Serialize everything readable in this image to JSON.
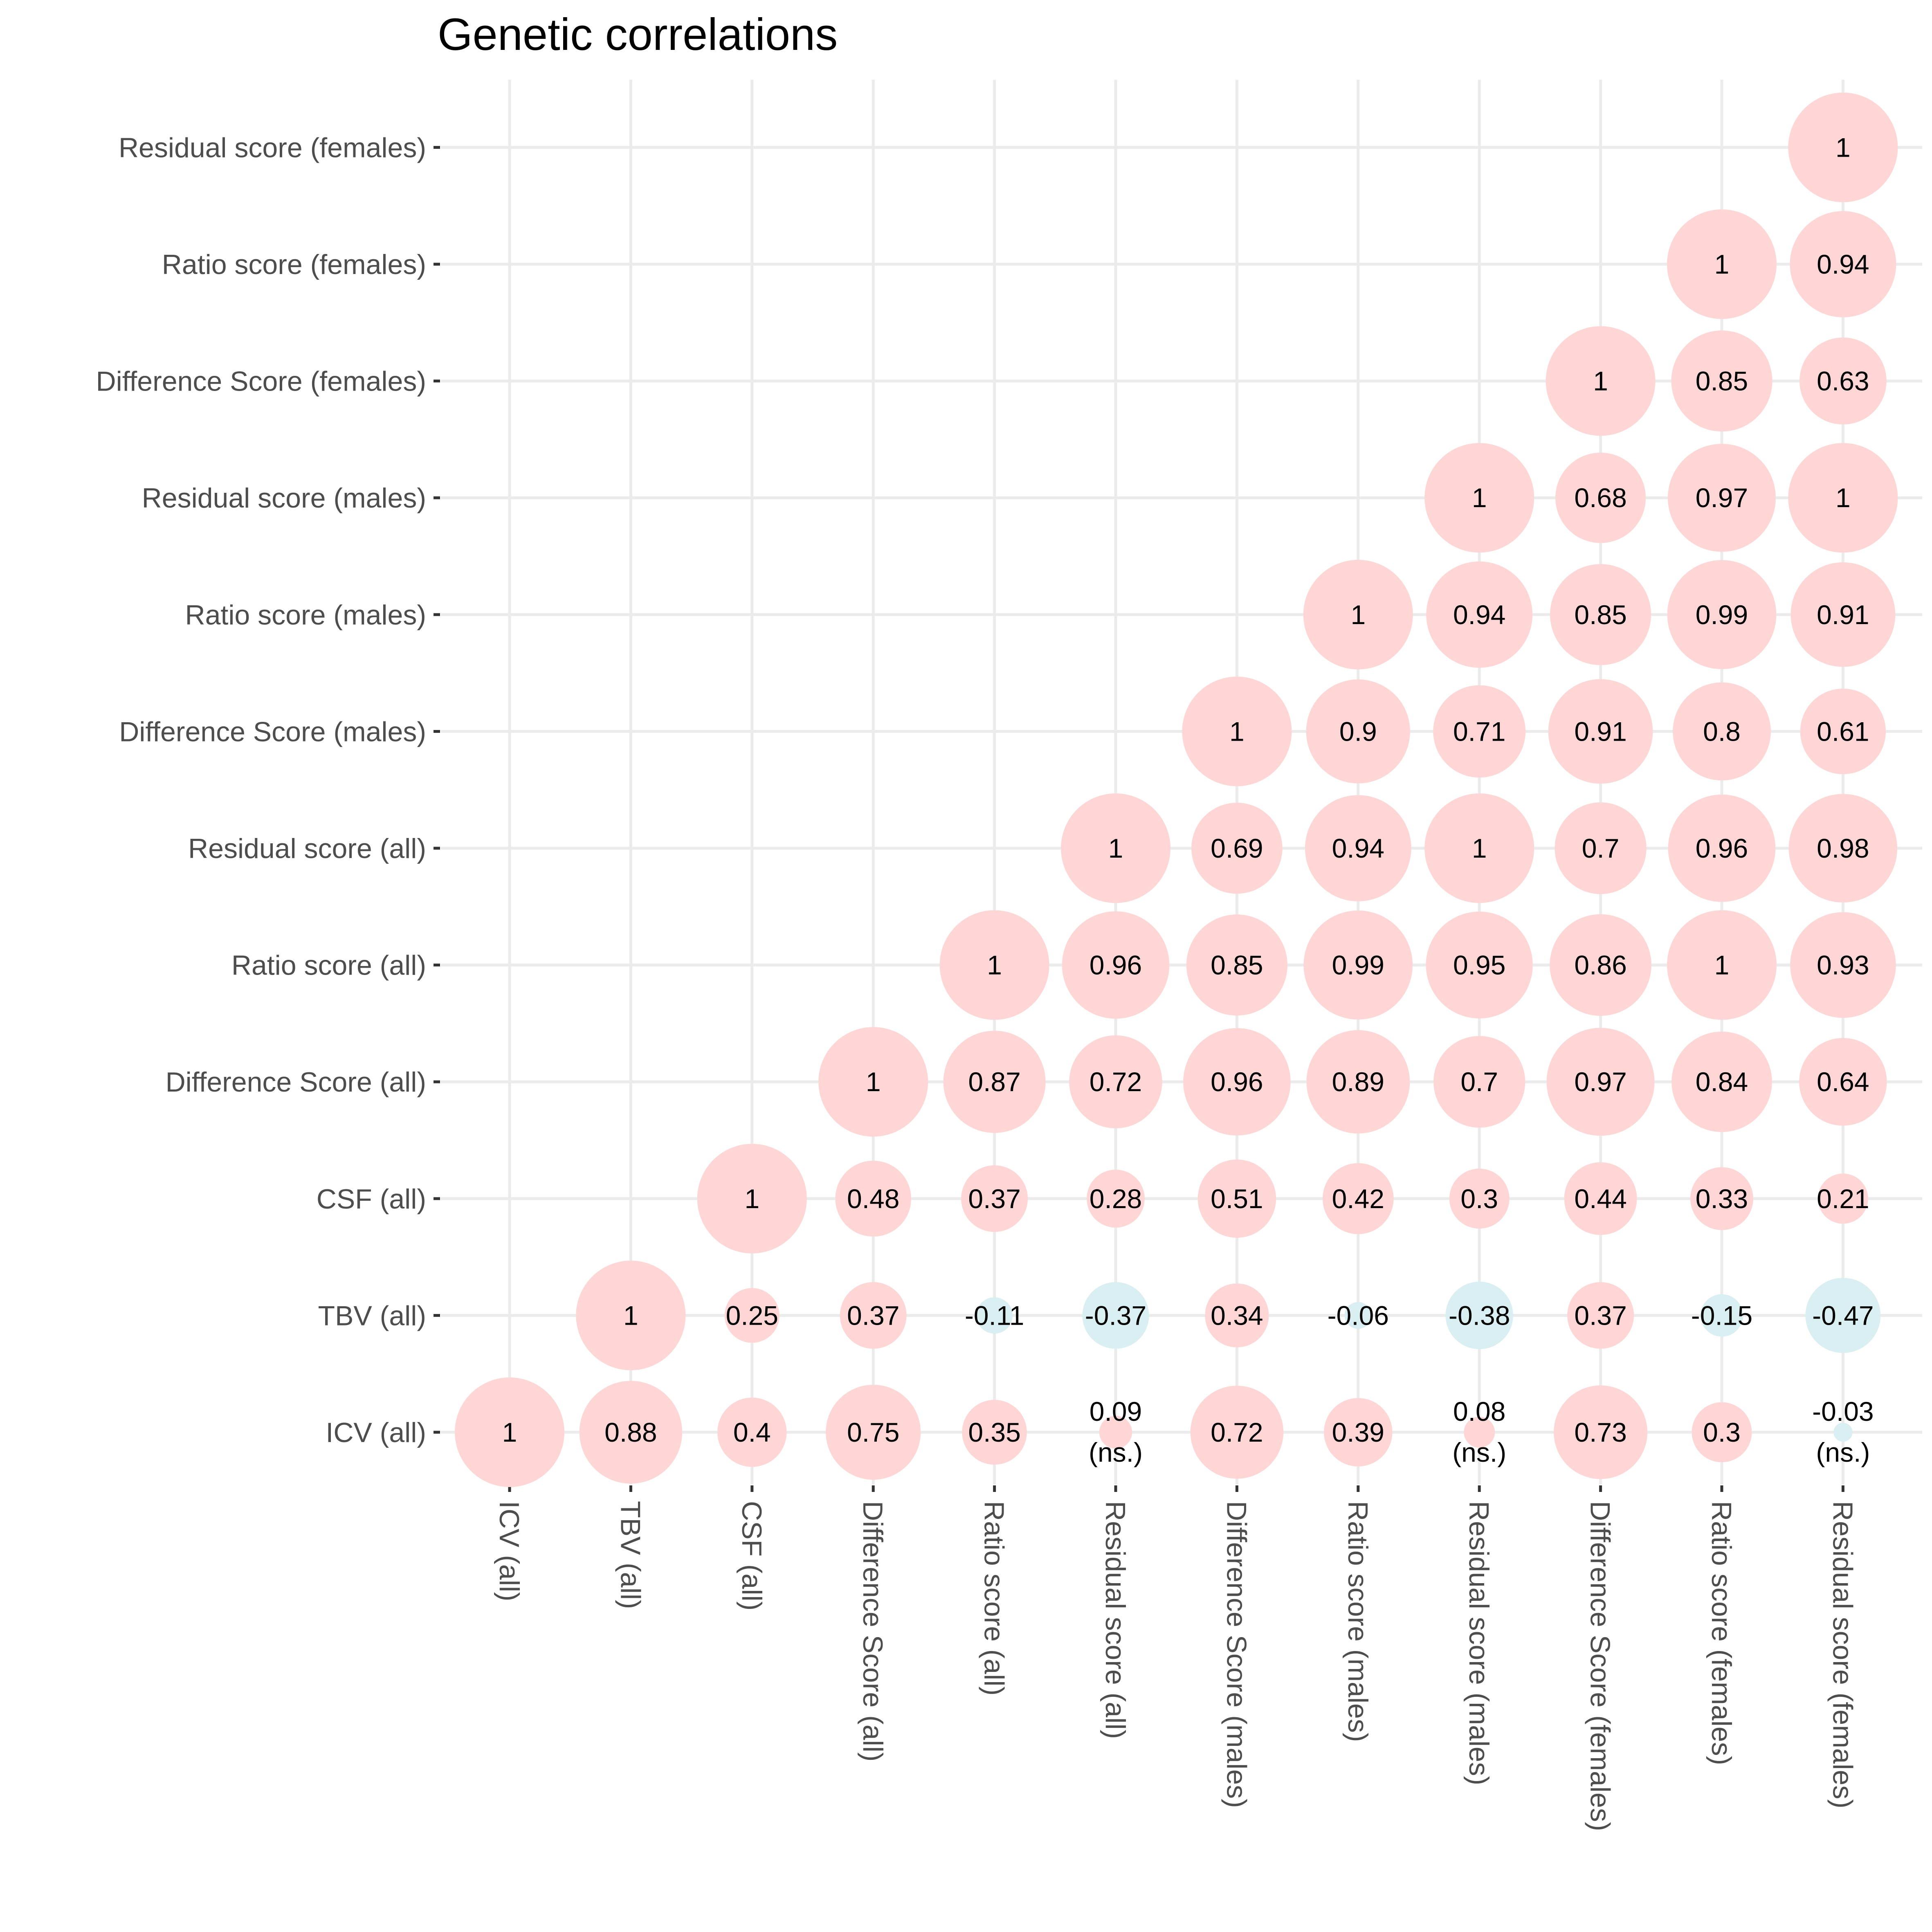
{
  "chart_data": {
    "type": "correlation-bubble",
    "title": "Genetic correlations",
    "xlabel": "",
    "ylabel": "",
    "grid": true,
    "legend": "none",
    "colors": {
      "positive": "#f8766d",
      "negative": "#00bfc4",
      "positive_fill": "#ffd6d6",
      "negative_fill": "#d9eff2"
    },
    "variables": [
      "ICV (all)",
      "TBV (all)",
      "CSF (all)",
      "Difference Score (all)",
      "Ratio score (all)",
      "Residual score (all)",
      "Difference Score (males)",
      "Ratio score (males)",
      "Residual score (males)",
      "Difference Score (females)",
      "Ratio score (females)",
      "Residual score (females)"
    ],
    "cells": [
      {
        "x": "ICV (all)",
        "y": "ICV (all)",
        "r": 1,
        "label": "1"
      },
      {
        "x": "TBV (all)",
        "y": "ICV (all)",
        "r": 0.88,
        "label": "0.88"
      },
      {
        "x": "TBV (all)",
        "y": "TBV (all)",
        "r": 1,
        "label": "1"
      },
      {
        "x": "CSF (all)",
        "y": "ICV (all)",
        "r": 0.4,
        "label": "0.4"
      },
      {
        "x": "CSF (all)",
        "y": "TBV (all)",
        "r": 0.25,
        "label": "0.25"
      },
      {
        "x": "CSF (all)",
        "y": "CSF (all)",
        "r": 1,
        "label": "1"
      },
      {
        "x": "Difference Score (all)",
        "y": "ICV (all)",
        "r": 0.75,
        "label": "0.75"
      },
      {
        "x": "Difference Score (all)",
        "y": "TBV (all)",
        "r": 0.37,
        "label": "0.37"
      },
      {
        "x": "Difference Score (all)",
        "y": "CSF (all)",
        "r": 0.48,
        "label": "0.48"
      },
      {
        "x": "Difference Score (all)",
        "y": "Difference Score (all)",
        "r": 1,
        "label": "1"
      },
      {
        "x": "Ratio score (all)",
        "y": "ICV (all)",
        "r": 0.35,
        "label": "0.35"
      },
      {
        "x": "Ratio score (all)",
        "y": "TBV (all)",
        "r": -0.11,
        "label": "-0.11"
      },
      {
        "x": "Ratio score (all)",
        "y": "CSF (all)",
        "r": 0.37,
        "label": "0.37"
      },
      {
        "x": "Ratio score (all)",
        "y": "Difference Score (all)",
        "r": 0.87,
        "label": "0.87"
      },
      {
        "x": "Ratio score (all)",
        "y": "Ratio score (all)",
        "r": 1,
        "label": "1"
      },
      {
        "x": "Residual score (all)",
        "y": "ICV (all)",
        "r": 0.09,
        "label": "0.09",
        "sublabel": "(ns.)"
      },
      {
        "x": "Residual score (all)",
        "y": "TBV (all)",
        "r": -0.37,
        "label": "-0.37"
      },
      {
        "x": "Residual score (all)",
        "y": "CSF (all)",
        "r": 0.28,
        "label": "0.28"
      },
      {
        "x": "Residual score (all)",
        "y": "Difference Score (all)",
        "r": 0.72,
        "label": "0.72"
      },
      {
        "x": "Residual score (all)",
        "y": "Ratio score (all)",
        "r": 0.96,
        "label": "0.96"
      },
      {
        "x": "Residual score (all)",
        "y": "Residual score (all)",
        "r": 1,
        "label": "1"
      },
      {
        "x": "Difference Score (males)",
        "y": "ICV (all)",
        "r": 0.72,
        "label": "0.72"
      },
      {
        "x": "Difference Score (males)",
        "y": "TBV (all)",
        "r": 0.34,
        "label": "0.34"
      },
      {
        "x": "Difference Score (males)",
        "y": "CSF (all)",
        "r": 0.51,
        "label": "0.51"
      },
      {
        "x": "Difference Score (males)",
        "y": "Difference Score (all)",
        "r": 0.96,
        "label": "0.96"
      },
      {
        "x": "Difference Score (males)",
        "y": "Ratio score (all)",
        "r": 0.85,
        "label": "0.85"
      },
      {
        "x": "Difference Score (males)",
        "y": "Residual score (all)",
        "r": 0.69,
        "label": "0.69"
      },
      {
        "x": "Difference Score (males)",
        "y": "Difference Score (males)",
        "r": 1,
        "label": "1"
      },
      {
        "x": "Ratio score (males)",
        "y": "ICV (all)",
        "r": 0.39,
        "label": "0.39"
      },
      {
        "x": "Ratio score (males)",
        "y": "TBV (all)",
        "r": -0.06,
        "label": "-0.06"
      },
      {
        "x": "Ratio score (males)",
        "y": "CSF (all)",
        "r": 0.42,
        "label": "0.42"
      },
      {
        "x": "Ratio score (males)",
        "y": "Difference Score (all)",
        "r": 0.89,
        "label": "0.89"
      },
      {
        "x": "Ratio score (males)",
        "y": "Ratio score (all)",
        "r": 0.99,
        "label": "0.99"
      },
      {
        "x": "Ratio score (males)",
        "y": "Residual score (all)",
        "r": 0.94,
        "label": "0.94"
      },
      {
        "x": "Ratio score (males)",
        "y": "Difference Score (males)",
        "r": 0.9,
        "label": "0.9"
      },
      {
        "x": "Ratio score (males)",
        "y": "Ratio score (males)",
        "r": 1,
        "label": "1"
      },
      {
        "x": "Residual score (males)",
        "y": "ICV (all)",
        "r": 0.08,
        "label": "0.08",
        "sublabel": "(ns.)"
      },
      {
        "x": "Residual score (males)",
        "y": "TBV (all)",
        "r": -0.38,
        "label": "-0.38"
      },
      {
        "x": "Residual score (males)",
        "y": "CSF (all)",
        "r": 0.3,
        "label": "0.3"
      },
      {
        "x": "Residual score (males)",
        "y": "Difference Score (all)",
        "r": 0.7,
        "label": "0.7"
      },
      {
        "x": "Residual score (males)",
        "y": "Ratio score (all)",
        "r": 0.95,
        "label": "0.95"
      },
      {
        "x": "Residual score (males)",
        "y": "Residual score (all)",
        "r": 1,
        "label": "1"
      },
      {
        "x": "Residual score (males)",
        "y": "Difference Score (males)",
        "r": 0.71,
        "label": "0.71"
      },
      {
        "x": "Residual score (males)",
        "y": "Ratio score (males)",
        "r": 0.94,
        "label": "0.94"
      },
      {
        "x": "Residual score (males)",
        "y": "Residual score (males)",
        "r": 1,
        "label": "1"
      },
      {
        "x": "Difference Score (females)",
        "y": "ICV (all)",
        "r": 0.73,
        "label": "0.73"
      },
      {
        "x": "Difference Score (females)",
        "y": "TBV (all)",
        "r": 0.37,
        "label": "0.37"
      },
      {
        "x": "Difference Score (females)",
        "y": "CSF (all)",
        "r": 0.44,
        "label": "0.44"
      },
      {
        "x": "Difference Score (females)",
        "y": "Difference Score (all)",
        "r": 0.97,
        "label": "0.97"
      },
      {
        "x": "Difference Score (females)",
        "y": "Ratio score (all)",
        "r": 0.86,
        "label": "0.86"
      },
      {
        "x": "Difference Score (females)",
        "y": "Residual score (all)",
        "r": 0.7,
        "label": "0.7"
      },
      {
        "x": "Difference Score (females)",
        "y": "Difference Score (males)",
        "r": 0.91,
        "label": "0.91"
      },
      {
        "x": "Difference Score (females)",
        "y": "Ratio score (males)",
        "r": 0.85,
        "label": "0.85"
      },
      {
        "x": "Difference Score (females)",
        "y": "Residual score (males)",
        "r": 0.68,
        "label": "0.68"
      },
      {
        "x": "Difference Score (females)",
        "y": "Difference Score (females)",
        "r": 1,
        "label": "1"
      },
      {
        "x": "Ratio score (females)",
        "y": "ICV (all)",
        "r": 0.3,
        "label": "0.3"
      },
      {
        "x": "Ratio score (females)",
        "y": "TBV (all)",
        "r": -0.15,
        "label": "-0.15"
      },
      {
        "x": "Ratio score (females)",
        "y": "CSF (all)",
        "r": 0.33,
        "label": "0.33"
      },
      {
        "x": "Ratio score (females)",
        "y": "Difference Score (all)",
        "r": 0.84,
        "label": "0.84"
      },
      {
        "x": "Ratio score (females)",
        "y": "Ratio score (all)",
        "r": 1,
        "label": "1"
      },
      {
        "x": "Ratio score (females)",
        "y": "Residual score (all)",
        "r": 0.96,
        "label": "0.96"
      },
      {
        "x": "Ratio score (females)",
        "y": "Difference Score (males)",
        "r": 0.8,
        "label": "0.8"
      },
      {
        "x": "Ratio score (females)",
        "y": "Ratio score (males)",
        "r": 0.99,
        "label": "0.99"
      },
      {
        "x": "Ratio score (females)",
        "y": "Residual score (males)",
        "r": 0.97,
        "label": "0.97"
      },
      {
        "x": "Ratio score (females)",
        "y": "Difference Score (females)",
        "r": 0.85,
        "label": "0.85"
      },
      {
        "x": "Ratio score (females)",
        "y": "Ratio score (females)",
        "r": 1,
        "label": "1"
      },
      {
        "x": "Residual score (females)",
        "y": "ICV (all)",
        "r": -0.03,
        "label": "-0.03",
        "sublabel": "(ns.)"
      },
      {
        "x": "Residual score (females)",
        "y": "TBV (all)",
        "r": -0.47,
        "label": "-0.47"
      },
      {
        "x": "Residual score (females)",
        "y": "CSF (all)",
        "r": 0.21,
        "label": "0.21"
      },
      {
        "x": "Residual score (females)",
        "y": "Difference Score (all)",
        "r": 0.64,
        "label": "0.64"
      },
      {
        "x": "Residual score (females)",
        "y": "Ratio score (all)",
        "r": 0.93,
        "label": "0.93"
      },
      {
        "x": "Residual score (females)",
        "y": "Residual score (all)",
        "r": 0.98,
        "label": "0.98"
      },
      {
        "x": "Residual score (females)",
        "y": "Difference Score (males)",
        "r": 0.61,
        "label": "0.61"
      },
      {
        "x": "Residual score (females)",
        "y": "Ratio score (males)",
        "r": 0.91,
        "label": "0.91"
      },
      {
        "x": "Residual score (females)",
        "y": "Residual score (males)",
        "r": 1,
        "label": "1"
      },
      {
        "x": "Residual score (females)",
        "y": "Difference Score (females)",
        "r": 0.63,
        "label": "0.63"
      },
      {
        "x": "Residual score (females)",
        "y": "Ratio score (females)",
        "r": 0.94,
        "label": "0.94"
      },
      {
        "x": "Residual score (females)",
        "y": "Residual score (females)",
        "r": 1,
        "label": "1"
      }
    ]
  }
}
